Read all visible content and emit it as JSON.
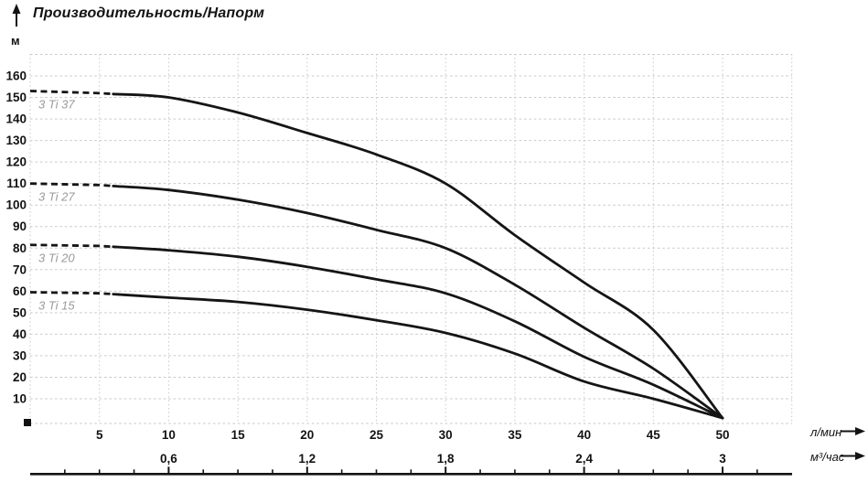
{
  "page": {
    "background": "#ffffff"
  },
  "chart_data": {
    "type": "line",
    "title": "Производительность/Напорм",
    "ylabel": "м",
    "xlabel_primary": "л/мин",
    "xlabel_secondary": "м³/час",
    "xlim": [
      0,
      55
    ],
    "ylim": [
      0,
      170
    ],
    "grid": {
      "vertical_step": 5,
      "horizontal_step": 10,
      "color": "#c9c9c9",
      "style": "dotted"
    },
    "x_ticks_primary": [
      5,
      10,
      15,
      20,
      25,
      30,
      35,
      40,
      45,
      50
    ],
    "x_ticks_secondary": [
      {
        "label": "0,6",
        "q": 10
      },
      {
        "label": "1,2",
        "q": 20
      },
      {
        "label": "1,8",
        "q": 30
      },
      {
        "label": "2,4",
        "q": 40
      },
      {
        "label": "3",
        "q": 50
      }
    ],
    "y_ticks": [
      10,
      20,
      30,
      40,
      50,
      60,
      70,
      80,
      90,
      100,
      110,
      120,
      130,
      140,
      150,
      160
    ],
    "curve_color": "#151515",
    "series_label_color": "#9a9a9a",
    "axis_text_color": "#131313",
    "dash_until_q": 6,
    "series": [
      {
        "name": "3 Ti 37",
        "x": [
          0,
          5,
          10,
          15,
          20,
          25,
          30,
          35,
          40,
          45,
          50
        ],
        "y": [
          153,
          152,
          150,
          143,
          133.5,
          123.5,
          110,
          86,
          64,
          42,
          1
        ]
      },
      {
        "name": "3 Ti 27",
        "x": [
          0,
          5,
          10,
          15,
          20,
          25,
          30,
          35,
          40,
          45,
          50
        ],
        "y": [
          110,
          109.3,
          107,
          102.5,
          96.3,
          88.5,
          80,
          63,
          43,
          24,
          1
        ]
      },
      {
        "name": "3 Ti 20",
        "x": [
          0,
          5,
          10,
          15,
          20,
          25,
          30,
          35,
          40,
          45,
          50
        ],
        "y": [
          81.5,
          81,
          79,
          76,
          71.3,
          65.5,
          59,
          46,
          29.5,
          16.5,
          1
        ]
      },
      {
        "name": "3 Ti 15",
        "x": [
          0,
          5,
          10,
          15,
          20,
          25,
          30,
          35,
          40,
          45,
          50
        ],
        "y": [
          59.5,
          59,
          57,
          55,
          51.4,
          46.5,
          40.6,
          31,
          18,
          10,
          1
        ]
      }
    ],
    "ruler": {
      "minor_tick_step_q": 2.5,
      "major_tick_qs": [
        10,
        20,
        30,
        40,
        50
      ]
    }
  }
}
